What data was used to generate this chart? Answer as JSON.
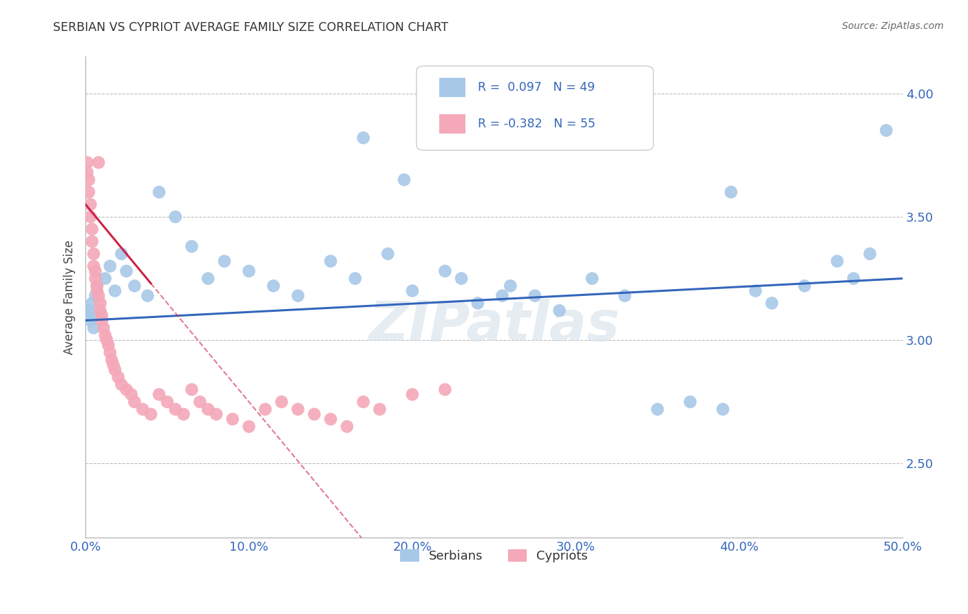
{
  "title": "SERBIAN VS CYPRIOT AVERAGE FAMILY SIZE CORRELATION CHART",
  "source": "Source: ZipAtlas.com",
  "ylabel": "Average Family Size",
  "xlim": [
    0.0,
    0.5
  ],
  "ylim": [
    2.2,
    4.15
  ],
  "yticks": [
    2.5,
    3.0,
    3.5,
    4.0
  ],
  "xtick_vals": [
    0.0,
    0.1,
    0.2,
    0.3,
    0.4,
    0.5
  ],
  "xtick_labels": [
    "0.0%",
    "10.0%",
    "20.0%",
    "30.0%",
    "40.0%",
    "50.0%"
  ],
  "ytick_labels": [
    "2.50",
    "3.00",
    "3.50",
    "4.00"
  ],
  "serbian_R": 0.097,
  "serbian_N": 49,
  "cypriot_R": -0.382,
  "cypriot_N": 55,
  "serbian_color": "#a8c8e8",
  "cypriot_color": "#f4a8b8",
  "trend_serbian_color": "#3366bb",
  "trend_cypriot_color": "#cc2244",
  "background_color": "#ffffff",
  "grid_color": "#bbbbbb",
  "watermark": "ZIPatlas",
  "serbian_x": [
    0.001,
    0.002,
    0.003,
    0.004,
    0.005,
    0.006,
    0.007,
    0.008,
    0.012,
    0.015,
    0.018,
    0.022,
    0.025,
    0.03,
    0.038,
    0.045,
    0.055,
    0.065,
    0.075,
    0.085,
    0.1,
    0.115,
    0.13,
    0.15,
    0.165,
    0.185,
    0.2,
    0.22,
    0.24,
    0.26,
    0.275,
    0.29,
    0.31,
    0.33,
    0.35,
    0.37,
    0.39,
    0.41,
    0.42,
    0.44,
    0.46,
    0.47,
    0.48,
    0.49,
    0.17,
    0.195,
    0.23,
    0.255,
    0.395
  ],
  "serbian_y": [
    3.1,
    3.12,
    3.08,
    3.15,
    3.05,
    3.18,
    3.22,
    3.1,
    3.25,
    3.3,
    3.2,
    3.35,
    3.28,
    3.22,
    3.18,
    3.6,
    3.5,
    3.38,
    3.25,
    3.32,
    3.28,
    3.22,
    3.18,
    3.32,
    3.25,
    3.35,
    3.2,
    3.28,
    3.15,
    3.22,
    3.18,
    3.12,
    3.25,
    3.18,
    2.72,
    2.75,
    2.72,
    3.2,
    3.15,
    3.22,
    3.32,
    3.25,
    3.35,
    3.85,
    3.82,
    3.65,
    3.25,
    3.18,
    3.6
  ],
  "cypriot_x": [
    0.001,
    0.001,
    0.002,
    0.002,
    0.003,
    0.003,
    0.004,
    0.004,
    0.005,
    0.005,
    0.006,
    0.006,
    0.007,
    0.007,
    0.008,
    0.008,
    0.009,
    0.009,
    0.01,
    0.01,
    0.011,
    0.012,
    0.013,
    0.014,
    0.015,
    0.016,
    0.017,
    0.018,
    0.02,
    0.022,
    0.025,
    0.028,
    0.03,
    0.035,
    0.04,
    0.045,
    0.05,
    0.055,
    0.06,
    0.065,
    0.07,
    0.075,
    0.08,
    0.09,
    0.1,
    0.11,
    0.12,
    0.13,
    0.14,
    0.15,
    0.16,
    0.17,
    0.18,
    0.2,
    0.22
  ],
  "cypriot_y": [
    3.72,
    3.68,
    3.65,
    3.6,
    3.55,
    3.5,
    3.45,
    3.4,
    3.35,
    3.3,
    3.28,
    3.25,
    3.22,
    3.2,
    3.72,
    3.18,
    3.15,
    3.12,
    3.1,
    3.08,
    3.05,
    3.02,
    3.0,
    2.98,
    2.95,
    2.92,
    2.9,
    2.88,
    2.85,
    2.82,
    2.8,
    2.78,
    2.75,
    2.72,
    2.7,
    2.78,
    2.75,
    2.72,
    2.7,
    2.8,
    2.75,
    2.72,
    2.7,
    2.68,
    2.65,
    2.72,
    2.75,
    2.72,
    2.7,
    2.68,
    2.65,
    2.75,
    2.72,
    2.78,
    2.8
  ]
}
